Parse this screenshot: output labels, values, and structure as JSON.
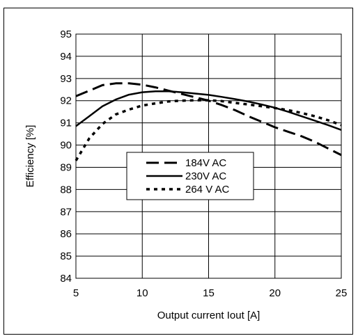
{
  "chart_data": {
    "type": "line",
    "title": "",
    "xlabel": "Output current Iout  [A]",
    "ylabel": "Efficiency [%]",
    "xlim": [
      5,
      25
    ],
    "ylim": [
      84,
      95
    ],
    "xticks": [
      5,
      10,
      15,
      20,
      25
    ],
    "yticks": [
      84,
      85,
      86,
      87,
      88,
      89,
      90,
      91,
      92,
      93,
      94,
      95
    ],
    "grid": true,
    "legend_position": "center-left",
    "series": [
      {
        "name": "184V AC",
        "style": "long-dash",
        "color": "#000000",
        "x": [
          5,
          6,
          7,
          8,
          9,
          10,
          11,
          12,
          13,
          14,
          15,
          16,
          17,
          18,
          19,
          20,
          21,
          22,
          23,
          24,
          25
        ],
        "y": [
          92.2,
          92.45,
          92.7,
          92.78,
          92.78,
          92.72,
          92.6,
          92.45,
          92.3,
          92.15,
          92.0,
          91.8,
          91.57,
          91.3,
          91.05,
          90.8,
          90.6,
          90.4,
          90.15,
          89.85,
          89.55
        ]
      },
      {
        "name": "230V AC",
        "style": "solid",
        "color": "#000000",
        "x": [
          5,
          6,
          7,
          8,
          9,
          10,
          11,
          12,
          13,
          14,
          15,
          16,
          17,
          18,
          19,
          20,
          21,
          22,
          23,
          24,
          25
        ],
        "y": [
          90.85,
          91.3,
          91.75,
          92.05,
          92.27,
          92.38,
          92.42,
          92.42,
          92.38,
          92.32,
          92.26,
          92.17,
          92.07,
          91.96,
          91.83,
          91.68,
          91.5,
          91.3,
          91.1,
          90.9,
          90.68
        ]
      },
      {
        "name": "264 V AC",
        "style": "dotted",
        "color": "#000000",
        "x": [
          5,
          6,
          7,
          8,
          9,
          10,
          11,
          12,
          13,
          14,
          15,
          16,
          17,
          18,
          19,
          20,
          21,
          22,
          23,
          24,
          25
        ],
        "y": [
          89.3,
          90.3,
          90.95,
          91.38,
          91.6,
          91.78,
          91.88,
          91.97,
          92.0,
          92.02,
          92.02,
          91.98,
          91.9,
          91.83,
          91.75,
          91.67,
          91.57,
          91.45,
          91.3,
          91.12,
          90.9
        ]
      }
    ]
  }
}
